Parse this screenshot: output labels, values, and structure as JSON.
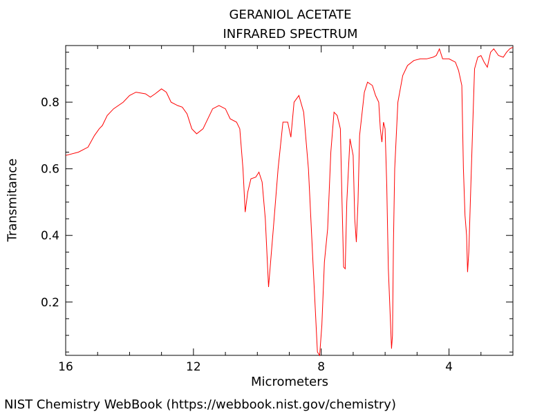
{
  "chart_data": {
    "type": "line",
    "title": "GERANIOL ACETATE",
    "subtitle": "INFRARED SPECTRUM",
    "xlabel": "Micrometers",
    "ylabel": "Transmitance",
    "xlim": [
      16,
      2
    ],
    "ylim": [
      0.04,
      0.97
    ],
    "x_ticks": [
      16,
      12,
      8,
      4
    ],
    "x_tick_labels": [
      "16",
      "12",
      "8",
      "4"
    ],
    "y_ticks": [
      0.2,
      0.4,
      0.6,
      0.8
    ],
    "y_tick_labels": [
      "0.2",
      "0.4",
      "0.6",
      "0.8"
    ],
    "grid": false,
    "series": [
      {
        "color": "#ff0000",
        "x": [
          16.0,
          15.6,
          15.3,
          15.1,
          14.95,
          14.85,
          14.7,
          14.5,
          14.2,
          14.0,
          13.8,
          13.5,
          13.35,
          13.2,
          13.0,
          12.85,
          12.7,
          12.5,
          12.35,
          12.2,
          12.05,
          11.9,
          11.7,
          11.4,
          11.2,
          11.0,
          10.85,
          10.65,
          10.55,
          10.45,
          10.38,
          10.3,
          10.2,
          10.05,
          9.95,
          9.85,
          9.75,
          9.65,
          9.5,
          9.35,
          9.2,
          9.05,
          8.95,
          8.85,
          8.7,
          8.55,
          8.4,
          8.25,
          8.12,
          8.05,
          7.98,
          7.9,
          7.8,
          7.7,
          7.6,
          7.5,
          7.4,
          7.35,
          7.3,
          7.25,
          7.2,
          7.1,
          7.0,
          6.95,
          6.9,
          6.85,
          6.8,
          6.65,
          6.55,
          6.4,
          6.3,
          6.2,
          6.15,
          6.1,
          6.05,
          6.0,
          5.95,
          5.9,
          5.8,
          5.77,
          5.74,
          5.7,
          5.6,
          5.45,
          5.3,
          5.1,
          4.9,
          4.7,
          4.5,
          4.4,
          4.3,
          4.2,
          4.0,
          3.8,
          3.7,
          3.6,
          3.55,
          3.5,
          3.45,
          3.42,
          3.38,
          3.3,
          3.2,
          3.1,
          3.0,
          2.9,
          2.8,
          2.7,
          2.6,
          2.45,
          2.3,
          2.2,
          2.1,
          2.0
        ],
        "y": [
          0.64,
          0.65,
          0.665,
          0.7,
          0.72,
          0.73,
          0.76,
          0.78,
          0.8,
          0.82,
          0.83,
          0.825,
          0.815,
          0.825,
          0.84,
          0.83,
          0.8,
          0.79,
          0.785,
          0.765,
          0.72,
          0.705,
          0.72,
          0.78,
          0.79,
          0.78,
          0.75,
          0.74,
          0.72,
          0.6,
          0.47,
          0.53,
          0.57,
          0.575,
          0.59,
          0.56,
          0.45,
          0.245,
          0.42,
          0.6,
          0.74,
          0.74,
          0.695,
          0.8,
          0.82,
          0.77,
          0.6,
          0.3,
          0.05,
          0.04,
          0.13,
          0.32,
          0.42,
          0.65,
          0.77,
          0.76,
          0.72,
          0.5,
          0.305,
          0.3,
          0.5,
          0.69,
          0.64,
          0.45,
          0.38,
          0.5,
          0.7,
          0.83,
          0.86,
          0.85,
          0.82,
          0.8,
          0.72,
          0.68,
          0.74,
          0.72,
          0.55,
          0.3,
          0.06,
          0.1,
          0.38,
          0.6,
          0.8,
          0.88,
          0.91,
          0.925,
          0.93,
          0.93,
          0.935,
          0.94,
          0.96,
          0.93,
          0.93,
          0.92,
          0.895,
          0.85,
          0.6,
          0.46,
          0.4,
          0.29,
          0.35,
          0.6,
          0.9,
          0.935,
          0.94,
          0.92,
          0.905,
          0.95,
          0.96,
          0.94,
          0.935,
          0.95,
          0.96,
          0.965
        ]
      }
    ]
  },
  "footer": "NIST Chemistry WebBook (https://webbook.nist.gov/chemistry)"
}
